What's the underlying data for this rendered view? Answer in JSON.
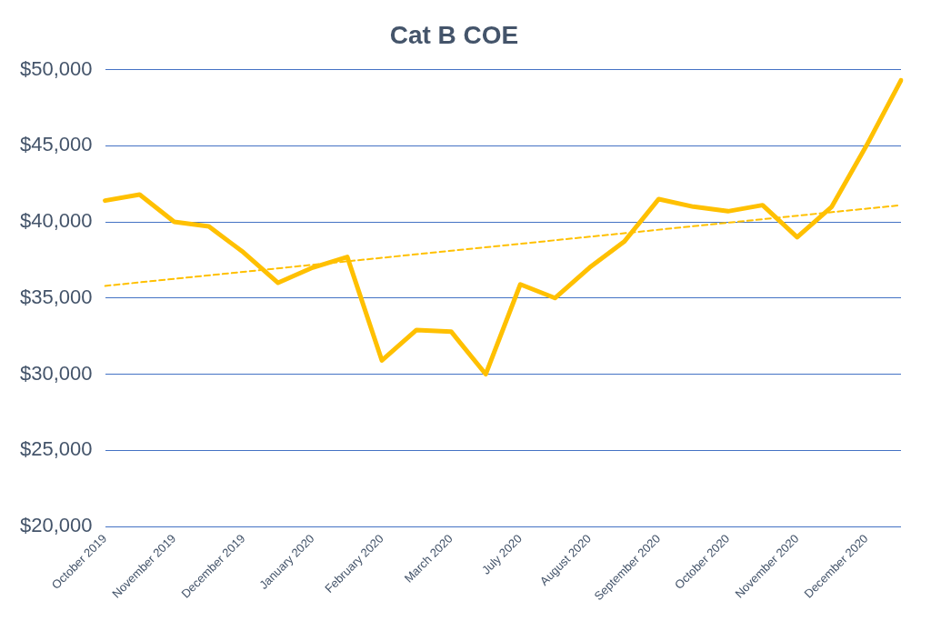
{
  "chart_data": {
    "type": "line",
    "title": "Cat B COE",
    "categories": [
      "October 2019",
      null,
      "November 2019",
      null,
      "December 2019",
      null,
      "January 2020",
      null,
      "February 2020",
      null,
      "March 2020",
      null,
      "July 2020",
      null,
      "August 2020",
      null,
      "September 2020",
      null,
      "October 2020",
      null,
      "November 2020",
      null,
      "December 2020",
      null
    ],
    "series": [
      {
        "color": "#ffc000",
        "values": [
          41400,
          41800,
          40000,
          39700,
          38000,
          36000,
          37000,
          37700,
          30900,
          32900,
          32800,
          30000,
          35900,
          35000,
          37000,
          38700,
          41500,
          41000,
          40700,
          41100,
          39000,
          41000,
          45000,
          49300
        ]
      },
      {
        "type": "line",
        "color": "#ffc000",
        "line_style": "dashed",
        "values": [
          35800,
          null,
          null,
          null,
          null,
          null,
          null,
          null,
          null,
          null,
          null,
          null,
          null,
          null,
          null,
          null,
          null,
          null,
          null,
          null,
          null,
          null,
          null,
          41100
        ]
      }
    ],
    "ylim": [
      20000,
      50000
    ],
    "yticks": [
      {
        "value": 20000,
        "label": "$20,000"
      },
      {
        "value": 25000,
        "label": "$25,000"
      },
      {
        "value": 30000,
        "label": "$30,000"
      },
      {
        "value": 35000,
        "label": "$35,000"
      },
      {
        "value": 40000,
        "label": "$40,000"
      },
      {
        "value": 45000,
        "label": "$45,000"
      },
      {
        "value": 50000,
        "label": "$50,000"
      }
    ],
    "grid": "y",
    "marker": "none",
    "legend": false
  }
}
